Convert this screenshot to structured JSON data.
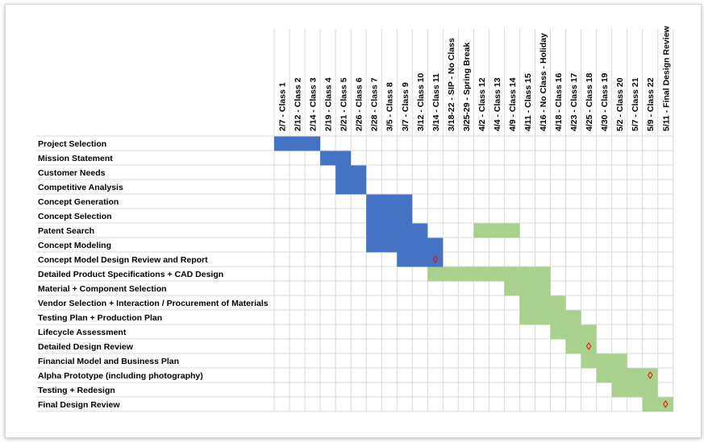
{
  "chart_data": {
    "type": "gantt",
    "title": "",
    "columns": [
      "2/7 - Class 1",
      "2/12 - Class 2",
      "2/14 - Class 3",
      "2/19 - Class 4",
      "2/21 - Class 5",
      "2/26 - Class 6",
      "2/28 - Class 7",
      "3/5 - Class 8",
      "3/7 - Class 9",
      "3/12 - Class 10",
      "3/14 - Class 11",
      "3/18-22 - SIP - No Class",
      "3/25-29 - Spring Break",
      "4/2 - Class 12",
      "4/4 - Class 13",
      "4/9 - Class 14",
      "4/11 - Class 15",
      "4/16 - No Class - Holiday",
      "4/18 - Class 16",
      "4/23 - Class 17",
      "4/25 - Class 18",
      "4/30 - Class 19",
      "5/2 - Class 20",
      "5/7 - Class 21",
      "5/9 - Class 22",
      "5/11 - Final Design Review"
    ],
    "colors": {
      "completed": "#4472c4",
      "planned": "#a9d18e",
      "milestone": "#ff0000",
      "grid": "#d9d9d9"
    },
    "tasks": [
      {
        "name": "Project Selection",
        "segments": [
          {
            "start": 0,
            "end": 3,
            "status": "completed"
          }
        ]
      },
      {
        "name": "Mission Statement",
        "segments": [
          {
            "start": 3,
            "end": 5,
            "status": "completed"
          }
        ]
      },
      {
        "name": "Customer Needs",
        "segments": [
          {
            "start": 4,
            "end": 6,
            "status": "completed"
          }
        ]
      },
      {
        "name": "Competitive Analysis",
        "segments": [
          {
            "start": 4,
            "end": 6,
            "status": "completed"
          }
        ]
      },
      {
        "name": "Concept Generation",
        "segments": [
          {
            "start": 6,
            "end": 9,
            "status": "completed"
          }
        ]
      },
      {
        "name": "Concept Selection",
        "segments": [
          {
            "start": 6,
            "end": 9,
            "status": "completed"
          }
        ]
      },
      {
        "name": "Patent Search",
        "segments": [
          {
            "start": 6,
            "end": 10,
            "status": "completed"
          },
          {
            "start": 13,
            "end": 16,
            "status": "planned"
          }
        ]
      },
      {
        "name": "Concept Modeling",
        "segments": [
          {
            "start": 6,
            "end": 11,
            "status": "completed"
          }
        ]
      },
      {
        "name": "Concept Model Design Review and Report",
        "segments": [
          {
            "start": 8,
            "end": 11,
            "status": "completed"
          }
        ],
        "milestone": 10
      },
      {
        "name": "Detailed Product Specifications + CAD Design",
        "segments": [
          {
            "start": 10,
            "end": 18,
            "status": "planned"
          }
        ]
      },
      {
        "name": "Material + Component Selection",
        "segments": [
          {
            "start": 15,
            "end": 18,
            "status": "planned"
          }
        ]
      },
      {
        "name": "Vendor Selection + Interaction / Procurement of Materials",
        "segments": [
          {
            "start": 16,
            "end": 19,
            "status": "planned"
          }
        ]
      },
      {
        "name": "Testing Plan + Production Plan",
        "segments": [
          {
            "start": 16,
            "end": 20,
            "status": "planned"
          }
        ]
      },
      {
        "name": "Lifecycle Assessment",
        "segments": [
          {
            "start": 18,
            "end": 21,
            "status": "planned"
          }
        ]
      },
      {
        "name": "Detailed Design Review",
        "segments": [
          {
            "start": 19,
            "end": 21,
            "status": "planned"
          }
        ],
        "milestone": 20
      },
      {
        "name": "Financial Model and Business Plan",
        "segments": [
          {
            "start": 20,
            "end": 23,
            "status": "planned"
          }
        ]
      },
      {
        "name": "Alpha Prototype (including photography)",
        "segments": [
          {
            "start": 21,
            "end": 25,
            "status": "planned"
          }
        ],
        "milestone": 24
      },
      {
        "name": "Testing + Redesign",
        "segments": [
          {
            "start": 22,
            "end": 25,
            "status": "planned"
          }
        ]
      },
      {
        "name": "Final Design Review",
        "segments": [
          {
            "start": 24,
            "end": 26,
            "status": "planned"
          }
        ],
        "milestone": 25
      }
    ]
  }
}
